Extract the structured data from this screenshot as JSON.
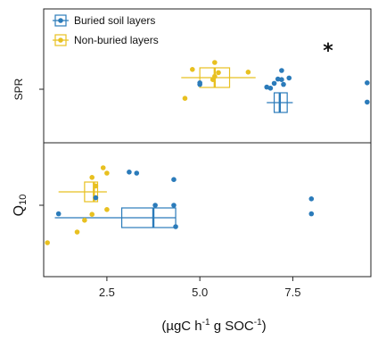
{
  "chart_data": {
    "type": "scatter",
    "xlabel_parts": [
      "(µgC h",
      "-1",
      " g SOC",
      "-1",
      ")"
    ],
    "x_ticks": [
      2.5,
      5.0,
      7.5
    ],
    "x_tick_labels": [
      "2.5",
      "5.0",
      "7.5"
    ],
    "xlim": [
      0.8,
      9.6
    ],
    "legend_position": "top-left",
    "annotation": "*",
    "series": [
      {
        "name": "Buried soil layers",
        "color": "#2b7bba"
      },
      {
        "name": "Non-buried layers",
        "color": "#e8c020"
      }
    ],
    "panels": [
      {
        "label": "SPR",
        "label_parts": [
          "SPR"
        ],
        "significance": "*",
        "boxes": [
          {
            "series": 0,
            "whisker_low": 6.8,
            "q1": 7.0,
            "median": 7.15,
            "q3": 7.35,
            "whisker_high": 7.5
          },
          {
            "series": 1,
            "whisker_low": 4.5,
            "q1": 5.0,
            "median": 5.4,
            "q3": 5.8,
            "whisker_high": 6.5
          }
        ],
        "points": [
          {
            "series": 0,
            "x": 7.2,
            "y": 1.75
          },
          {
            "series": 0,
            "x": 7.4,
            "y": 1.05
          },
          {
            "series": 0,
            "x": 7.1,
            "y": 0.95
          },
          {
            "series": 0,
            "x": 7.2,
            "y": 0.9
          },
          {
            "series": 0,
            "x": 7.0,
            "y": 0.55
          },
          {
            "series": 0,
            "x": 7.25,
            "y": 0.45
          },
          {
            "series": 0,
            "x": 6.8,
            "y": 0.2
          },
          {
            "series": 0,
            "x": 6.9,
            "y": 0.1
          },
          {
            "series": 0,
            "x": 9.5,
            "y": 0.6
          },
          {
            "series": 0,
            "x": 9.5,
            "y": -1.2
          },
          {
            "series": 0,
            "x": 5.0,
            "y": 0.6
          },
          {
            "series": 0,
            "x": 5.0,
            "y": 0.45
          },
          {
            "series": 1,
            "x": 5.4,
            "y": 2.5
          },
          {
            "series": 1,
            "x": 4.8,
            "y": 1.85
          },
          {
            "series": 1,
            "x": 5.5,
            "y": 1.55
          },
          {
            "series": 1,
            "x": 6.3,
            "y": 1.6
          },
          {
            "series": 1,
            "x": 5.4,
            "y": 1.2
          },
          {
            "series": 1,
            "x": 5.35,
            "y": 0.9
          },
          {
            "series": 1,
            "x": 4.6,
            "y": -0.85
          }
        ]
      },
      {
        "label": "Q10",
        "label_parts": [
          "Q",
          "10"
        ],
        "significance": "",
        "boxes": [
          {
            "series": 0,
            "whisker_low": 1.1,
            "q1": 2.9,
            "median": 3.75,
            "q3": 4.35,
            "whisker_high": 4.35
          },
          {
            "series": 1,
            "whisker_low": 1.2,
            "q1": 1.9,
            "median": 2.15,
            "q3": 2.25,
            "whisker_high": 2.5
          }
        ],
        "points": [
          {
            "series": 0,
            "x": 3.1,
            "y": 3.1
          },
          {
            "series": 0,
            "x": 3.3,
            "y": 3.0
          },
          {
            "series": 0,
            "x": 4.3,
            "y": 2.4
          },
          {
            "series": 0,
            "x": 2.2,
            "y": 0.7
          },
          {
            "series": 0,
            "x": 1.2,
            "y": -0.8
          },
          {
            "series": 0,
            "x": 3.8,
            "y": 0.0
          },
          {
            "series": 0,
            "x": 4.3,
            "y": 0.0
          },
          {
            "series": 0,
            "x": 4.35,
            "y": -2.0
          },
          {
            "series": 0,
            "x": 8.0,
            "y": 0.6
          },
          {
            "series": 0,
            "x": 8.0,
            "y": -0.8
          },
          {
            "series": 1,
            "x": 2.4,
            "y": 3.5
          },
          {
            "series": 1,
            "x": 2.5,
            "y": 3.0
          },
          {
            "series": 1,
            "x": 2.1,
            "y": 2.6
          },
          {
            "series": 1,
            "x": 2.2,
            "y": 1.8
          },
          {
            "series": 1,
            "x": 2.1,
            "y": -0.85
          },
          {
            "series": 1,
            "x": 1.9,
            "y": -1.4
          },
          {
            "series": 1,
            "x": 2.5,
            "y": -0.4
          },
          {
            "series": 1,
            "x": 1.7,
            "y": -2.5
          },
          {
            "series": 1,
            "x": 0.9,
            "y": -3.5
          }
        ]
      }
    ]
  }
}
